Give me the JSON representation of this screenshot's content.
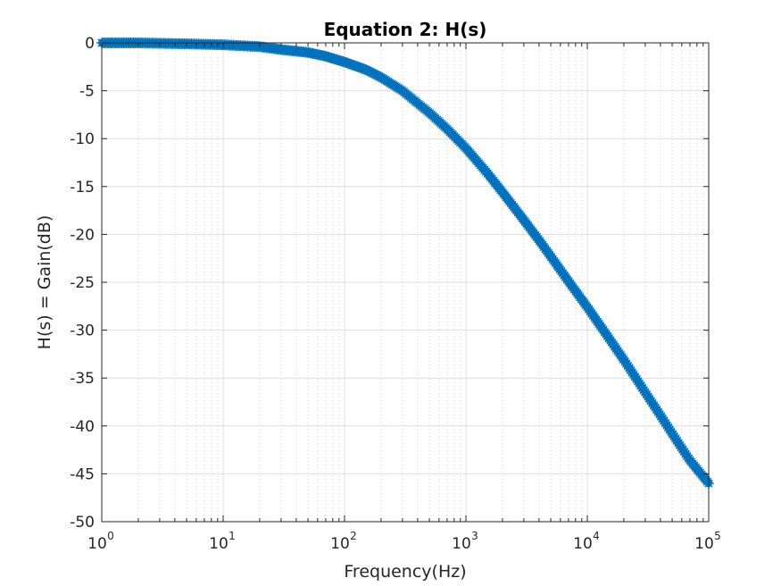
{
  "chart_data": {
    "type": "line",
    "title": "Equation 2: H(s)",
    "xlabel": "Frequency(Hz)",
    "ylabel": "H(s) = Gain(dB)",
    "xscale": "log",
    "xlim": [
      1,
      100000
    ],
    "ylim": [
      -50,
      0
    ],
    "xticks": [
      {
        "base": "10",
        "exp": "0"
      },
      {
        "base": "10",
        "exp": "1"
      },
      {
        "base": "10",
        "exp": "2"
      },
      {
        "base": "10",
        "exp": "3"
      },
      {
        "base": "10",
        "exp": "4"
      },
      {
        "base": "10",
        "exp": "5"
      }
    ],
    "yticks": [
      "0",
      "-5",
      "-10",
      "-15",
      "-20",
      "-25",
      "-30",
      "-35",
      "-40",
      "-45",
      "-50"
    ],
    "grid": true,
    "marker": "*",
    "line_color": "#0072BD",
    "series": [
      {
        "x": [
          1,
          2,
          5,
          10,
          20,
          30,
          50,
          70,
          100,
          150,
          200,
          300,
          400,
          500,
          700,
          1000,
          1500,
          2000,
          3000,
          4000,
          5000,
          7000,
          10000,
          15000,
          20000,
          30000,
          40000,
          50000,
          70000,
          100000
        ],
        "values": [
          0.0,
          0.0,
          -0.1,
          -0.2,
          -0.4,
          -0.7,
          -1.0,
          -1.4,
          -2.0,
          -2.8,
          -3.6,
          -5.0,
          -6.3,
          -7.3,
          -9.0,
          -11.0,
          -13.6,
          -15.6,
          -18.5,
          -20.6,
          -22.3,
          -24.9,
          -27.6,
          -30.8,
          -33.1,
          -36.5,
          -38.9,
          -40.8,
          -43.6,
          -46.0
        ]
      }
    ]
  }
}
